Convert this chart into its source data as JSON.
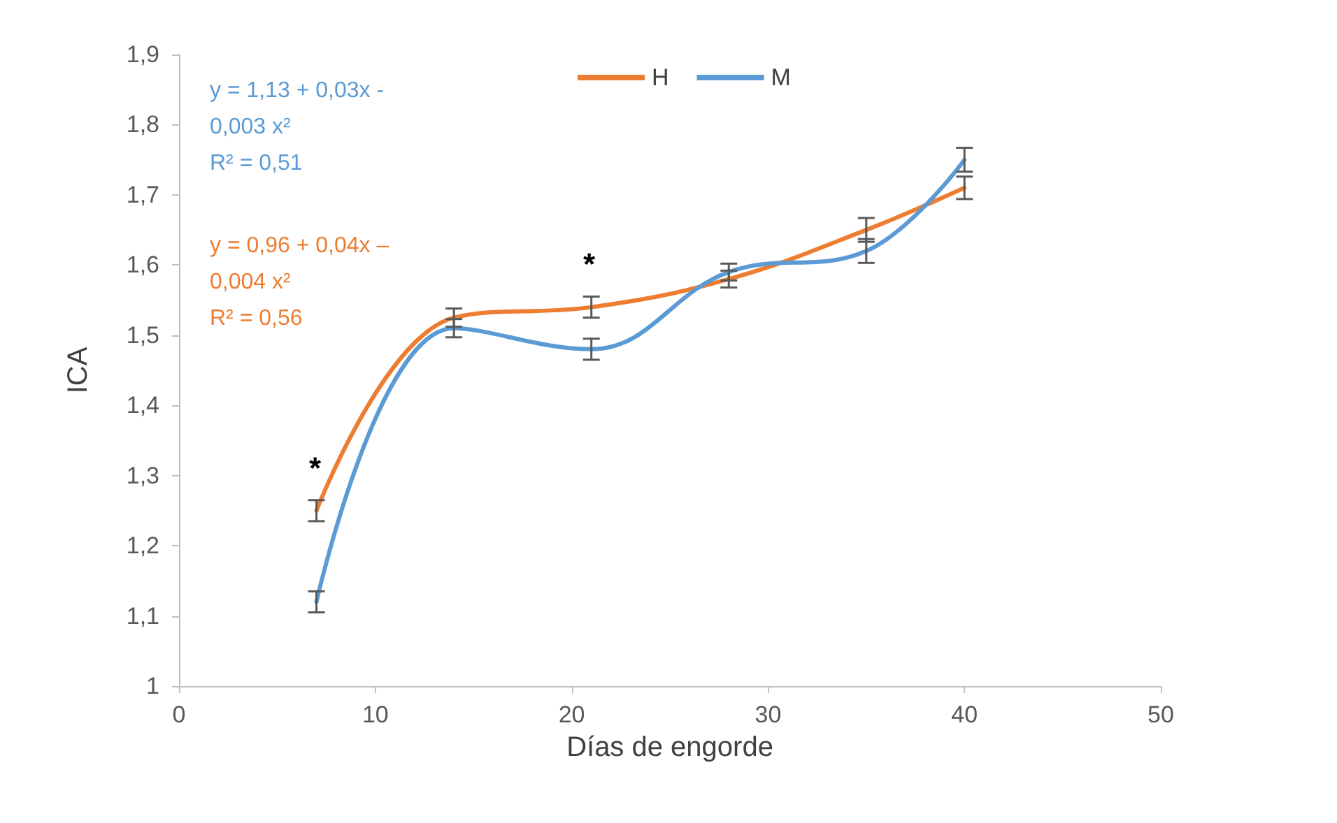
{
  "chart_data": {
    "type": "line",
    "xlabel": "Días de engorde",
    "ylabel": "ICA",
    "x": [
      7,
      14,
      21,
      28,
      35,
      40
    ],
    "series": [
      {
        "name": "H",
        "color": "#ed7d31",
        "values": [
          1.25,
          1.525,
          1.54,
          1.58,
          1.65,
          1.71
        ],
        "errors": [
          0.015,
          0.013,
          0.015,
          0.012,
          0.017,
          0.016
        ]
      },
      {
        "name": "M",
        "color": "#5b9bd5",
        "values": [
          1.12,
          1.51,
          1.48,
          1.59,
          1.62,
          1.75
        ],
        "errors": [
          0.015,
          0.013,
          0.015,
          0.012,
          0.017,
          0.017
        ]
      }
    ],
    "xlim": [
      0,
      50
    ],
    "xticks": [
      0,
      10,
      20,
      30,
      40,
      50
    ],
    "ylim": [
      1,
      1.9
    ],
    "yticks": [
      1,
      {
        "value": 1.1,
        "label": "1,1"
      },
      {
        "value": 1.2,
        "label": "1,2"
      },
      {
        "value": 1.3,
        "label": "1,3"
      },
      {
        "value": 1.4,
        "label": "1,4"
      },
      {
        "value": 1.5,
        "label": "1,5"
      },
      {
        "value": 1.6,
        "label": "1,6"
      },
      {
        "value": 1.7,
        "label": "1,7"
      },
      {
        "value": 1.8,
        "label": "1,8"
      },
      {
        "value": 1.9,
        "label": "1,9"
      }
    ],
    "annotations": [
      "y = 1,13 + 0,03x -\n0,003 x²\nR² = 0,51",
      "y = 0,96 + 0,04x –\n0,004 x²\nR² = 0,56",
      "*",
      "*"
    ],
    "grid": false,
    "legend": "top",
    "marker": "none",
    "line_style": "solid"
  }
}
